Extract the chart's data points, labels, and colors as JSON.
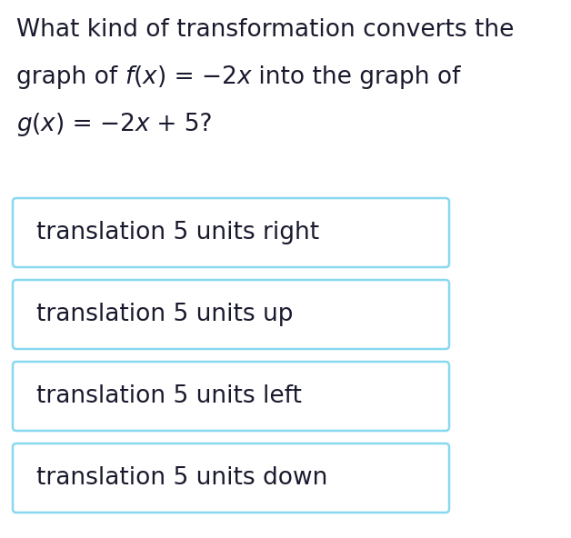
{
  "question_line1": "What kind of transformation converts the",
  "question_line2_parts": [
    {
      "text": "graph of ",
      "italic": false
    },
    {
      "text": "f",
      "italic": true
    },
    {
      "text": "(",
      "italic": false
    },
    {
      "text": "x",
      "italic": true
    },
    {
      "text": ") = −2",
      "italic": false
    },
    {
      "text": "x",
      "italic": true
    },
    {
      "text": " into the graph of",
      "italic": false
    }
  ],
  "question_line3_parts": [
    {
      "text": "g",
      "italic": true
    },
    {
      "text": "(",
      "italic": false
    },
    {
      "text": "x",
      "italic": true
    },
    {
      "text": ") = −2",
      "italic": false
    },
    {
      "text": "x",
      "italic": true
    },
    {
      "text": " + 5?",
      "italic": false
    }
  ],
  "options": [
    "translation 5 units right",
    "translation 5 units up",
    "translation 5 units left",
    "translation 5 units down"
  ],
  "bg_color": "#ffffff",
  "text_color": "#1a1a2e",
  "box_border_color": "#88d8f0",
  "box_fill_color": "#ffffff",
  "question_fontsize": 19,
  "option_fontsize": 19,
  "fig_width": 6.28,
  "fig_height": 5.92
}
